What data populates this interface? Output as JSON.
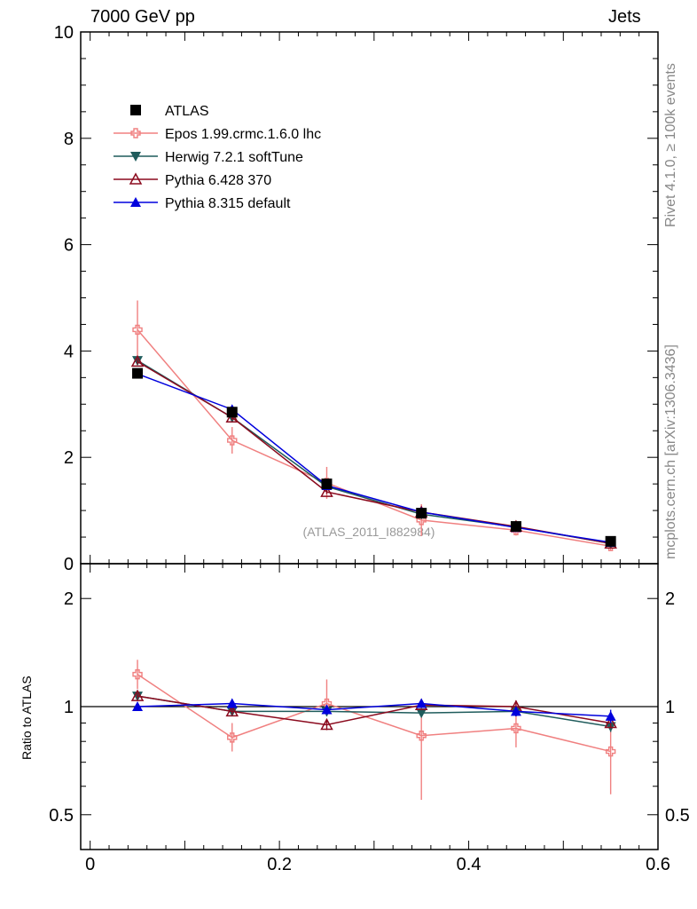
{
  "header": {
    "left": "7000 GeV pp",
    "right": "Jets"
  },
  "side_labels": {
    "rivet": "Rivet 4.1.0, ≥ 100k events",
    "mcplots": "mcplots.cern.ch [arXiv:1306.3436]"
  },
  "watermark": "(ATLAS_2011_I882984)",
  "ratio_ylabel": "Ratio to ATLAS",
  "chart_data": [
    {
      "type": "line",
      "panel": "main",
      "xlim": [
        -0.01,
        0.6
      ],
      "ylim": [
        0,
        10
      ],
      "yticks": [
        0,
        2,
        4,
        6,
        8,
        10
      ],
      "ytick_labels": [
        "0",
        "2",
        "4",
        "6",
        "8",
        "10"
      ],
      "legend_position": "top-left",
      "x": [
        0.05,
        0.15,
        0.25,
        0.35,
        0.45,
        0.55
      ],
      "series": [
        {
          "name": "ATLAS",
          "color": "#000000",
          "marker": "square",
          "values": [
            3.58,
            2.85,
            1.5,
            0.95,
            0.7,
            0.42
          ],
          "errors": [
            0.08,
            0.06,
            0.05,
            0.04,
            0.03,
            0.02
          ],
          "line": false
        },
        {
          "name": "Epos 1.99.crmc.1.6.0 lhc",
          "color": "#f08080",
          "marker": "cross",
          "values": [
            4.4,
            2.32,
            1.52,
            0.82,
            0.63,
            0.33
          ],
          "errors": [
            0.55,
            0.25,
            0.3,
            0.3,
            0.1,
            0.08
          ],
          "line": true
        },
        {
          "name": "Herwig 7.2.1 softTune",
          "color": "#1f5c5c",
          "marker": "triangle-down",
          "values": [
            3.82,
            2.75,
            1.45,
            0.93,
            0.69,
            0.38
          ],
          "errors": [
            0.05,
            0.05,
            0.04,
            0.03,
            0.02,
            0.02
          ],
          "line": true
        },
        {
          "name": "Pythia 6.428 370",
          "color": "#8b0a1e",
          "marker": "triangle-open",
          "values": [
            3.8,
            2.75,
            1.35,
            0.97,
            0.7,
            0.38
          ],
          "errors": [
            0.05,
            0.05,
            0.04,
            0.03,
            0.02,
            0.02
          ],
          "line": true
        },
        {
          "name": "Pythia 8.315 default",
          "color": "#0000dd",
          "marker": "triangle-up",
          "values": [
            3.57,
            2.9,
            1.47,
            0.97,
            0.68,
            0.4
          ],
          "errors": [
            0.05,
            0.05,
            0.04,
            0.03,
            0.02,
            0.02
          ],
          "line": true
        }
      ]
    },
    {
      "type": "line",
      "panel": "ratio",
      "xlim": [
        -0.01,
        0.6
      ],
      "ylim": [
        0.4,
        2.5
      ],
      "yscale": "log",
      "yticks": [
        0.5,
        1,
        2
      ],
      "ytick_labels": [
        "0.5",
        "1",
        "2"
      ],
      "xticks": [
        0,
        0.2,
        0.4,
        0.6
      ],
      "xtick_labels": [
        "0",
        "0.2",
        "0.4",
        "0.6"
      ],
      "reference_line": 1,
      "x": [
        0.05,
        0.15,
        0.25,
        0.35,
        0.45,
        0.55
      ],
      "series": [
        {
          "name": "Epos 1.99.crmc.1.6.0 lhc",
          "color": "#f08080",
          "marker": "cross",
          "values": [
            1.23,
            0.82,
            1.02,
            0.83,
            0.87,
            0.75
          ],
          "err_low": [
            0.11,
            0.07,
            0.07,
            0.28,
            0.1,
            0.18
          ],
          "err_high": [
            0.12,
            0.08,
            0.17,
            0.22,
            0.1,
            0.15
          ]
        },
        {
          "name": "Herwig 7.2.1 softTune",
          "color": "#1f5c5c",
          "marker": "triangle-down",
          "values": [
            1.07,
            0.97,
            0.97,
            0.96,
            0.97,
            0.88
          ],
          "err_low": [
            0.02,
            0.02,
            0.03,
            0.02,
            0.03,
            0.03
          ],
          "err_high": [
            0.02,
            0.02,
            0.03,
            0.02,
            0.03,
            0.03
          ]
        },
        {
          "name": "Pythia 6.428 370",
          "color": "#8b0a1e",
          "marker": "triangle-open",
          "values": [
            1.07,
            0.97,
            0.89,
            1.01,
            1.0,
            0.9
          ],
          "err_low": [
            0.02,
            0.02,
            0.03,
            0.02,
            0.03,
            0.03
          ],
          "err_high": [
            0.02,
            0.02,
            0.03,
            0.03,
            0.04,
            0.03
          ]
        },
        {
          "name": "Pythia 8.315 default",
          "color": "#0000dd",
          "marker": "triangle-up",
          "values": [
            1.0,
            1.02,
            0.98,
            1.02,
            0.97,
            0.94
          ],
          "err_low": [
            0.02,
            0.03,
            0.03,
            0.02,
            0.03,
            0.04
          ],
          "err_high": [
            0.02,
            0.03,
            0.03,
            0.03,
            0.03,
            0.04
          ]
        }
      ]
    }
  ]
}
